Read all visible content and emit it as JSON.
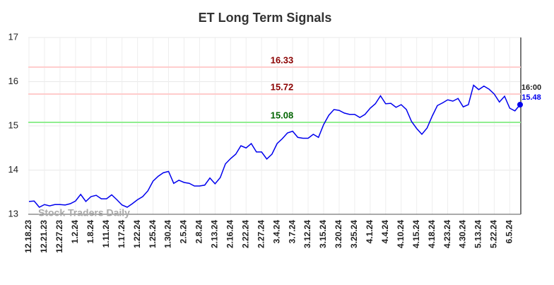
{
  "chart_data": {
    "type": "line",
    "title": "ET Long Term Signals",
    "watermark": "Stock Traders Daily",
    "categories": [
      "12.18.23",
      null,
      null,
      "12.21.23",
      null,
      null,
      "12.27.23",
      null,
      null,
      "1.2.24",
      null,
      null,
      "1.8.24",
      null,
      null,
      "1.11.24",
      null,
      null,
      "1.17.24",
      null,
      null,
      "1.22.24",
      null,
      null,
      "1.25.24",
      null,
      null,
      "1.30.24",
      null,
      null,
      "2.5.24",
      null,
      null,
      "2.8.24",
      null,
      null,
      "2.13.24",
      null,
      null,
      "2.16.24",
      null,
      null,
      "2.22.24",
      null,
      null,
      "2.27.24",
      null,
      null,
      "3.4.24",
      null,
      null,
      "3.7.24",
      null,
      null,
      "3.12.24",
      null,
      null,
      "3.15.24",
      null,
      null,
      "3.20.24",
      null,
      null,
      "3.25.24",
      null,
      null,
      "4.1.24",
      null,
      null,
      "4.4.24",
      null,
      null,
      "4.10.24",
      null,
      null,
      "4.15.24",
      null,
      null,
      "4.18.24",
      null,
      null,
      "4.23.24",
      null,
      null,
      "4.30.24",
      null,
      null,
      "5.13.24",
      null,
      null,
      "5.22.24",
      null,
      null,
      "6.5.24",
      null,
      null
    ],
    "series": [
      {
        "color": "#0000ee",
        "values": [
          13.29,
          13.3,
          13.16,
          13.22,
          13.19,
          13.22,
          13.22,
          13.21,
          13.24,
          13.3,
          13.45,
          13.29,
          13.4,
          13.43,
          13.35,
          13.35,
          13.44,
          13.33,
          13.21,
          13.16,
          13.24,
          13.33,
          13.4,
          13.53,
          13.75,
          13.86,
          13.94,
          13.97,
          13.7,
          13.77,
          13.72,
          13.7,
          13.64,
          13.64,
          13.66,
          13.82,
          13.69,
          13.83,
          14.14,
          14.26,
          14.36,
          14.55,
          14.5,
          14.6,
          14.41,
          14.41,
          14.25,
          14.36,
          14.6,
          14.71,
          14.84,
          14.88,
          14.74,
          14.72,
          14.72,
          14.81,
          14.74,
          15.03,
          15.24,
          15.37,
          15.35,
          15.29,
          15.26,
          15.26,
          15.19,
          15.26,
          15.4,
          15.5,
          15.68,
          15.5,
          15.51,
          15.42,
          15.48,
          15.37,
          15.1,
          14.94,
          14.81,
          14.95,
          15.22,
          15.46,
          15.52,
          15.59,
          15.56,
          15.62,
          15.43,
          15.48,
          15.92,
          15.82,
          15.9,
          15.83,
          15.72,
          15.54,
          15.67,
          15.4,
          15.34,
          15.48
        ]
      }
    ],
    "last_label": "16:00",
    "levels": [
      {
        "value": 16.33,
        "line_color": "#ffcccc",
        "label_color": "#8b0000"
      },
      {
        "value": 15.72,
        "line_color": "#ffcccc",
        "label_color": "#8b0000"
      },
      {
        "value": 15.08,
        "line_color": "#90ee90",
        "label_color": "#006400"
      }
    ],
    "ylim": [
      13,
      17
    ],
    "yticks": [
      13,
      14,
      15,
      16,
      17
    ],
    "grid": true
  }
}
